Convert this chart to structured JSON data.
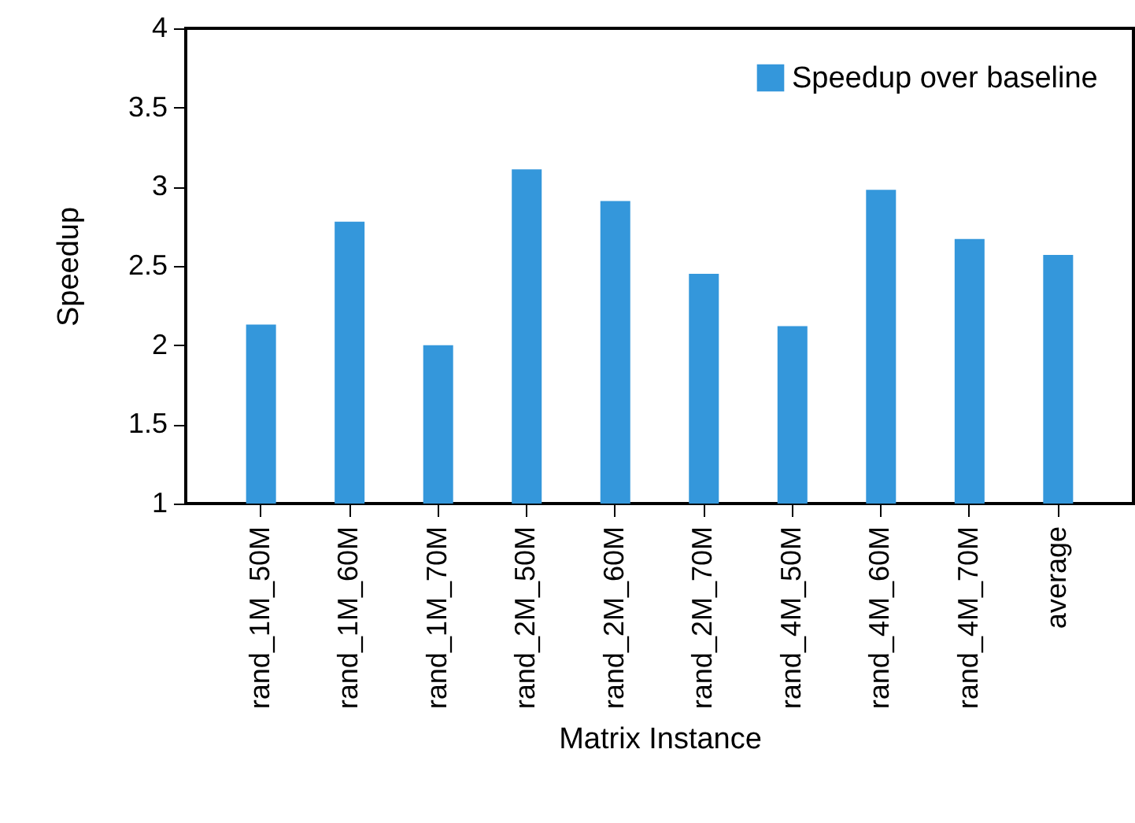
{
  "chart_data": {
    "type": "bar",
    "xlabel": "Matrix Instance",
    "ylabel": "Speedup",
    "categories": [
      "rand_1M_50M",
      "rand_1M_60M",
      "rand_1M_70M",
      "rand_2M_50M",
      "rand_2M_60M",
      "rand_2M_70M",
      "rand_4M_50M",
      "rand_4M_60M",
      "rand_4M_70M",
      "average"
    ],
    "series": [
      {
        "name": "Speedup over baseline",
        "color": "#3497db",
        "values": [
          2.13,
          2.78,
          2.0,
          3.11,
          2.91,
          2.45,
          2.12,
          2.98,
          2.67,
          2.57
        ]
      }
    ],
    "ylim": [
      1,
      4
    ],
    "yticks": [
      1,
      1.5,
      2,
      2.5,
      3,
      3.5,
      4
    ],
    "grid": false,
    "legend": "top right"
  }
}
